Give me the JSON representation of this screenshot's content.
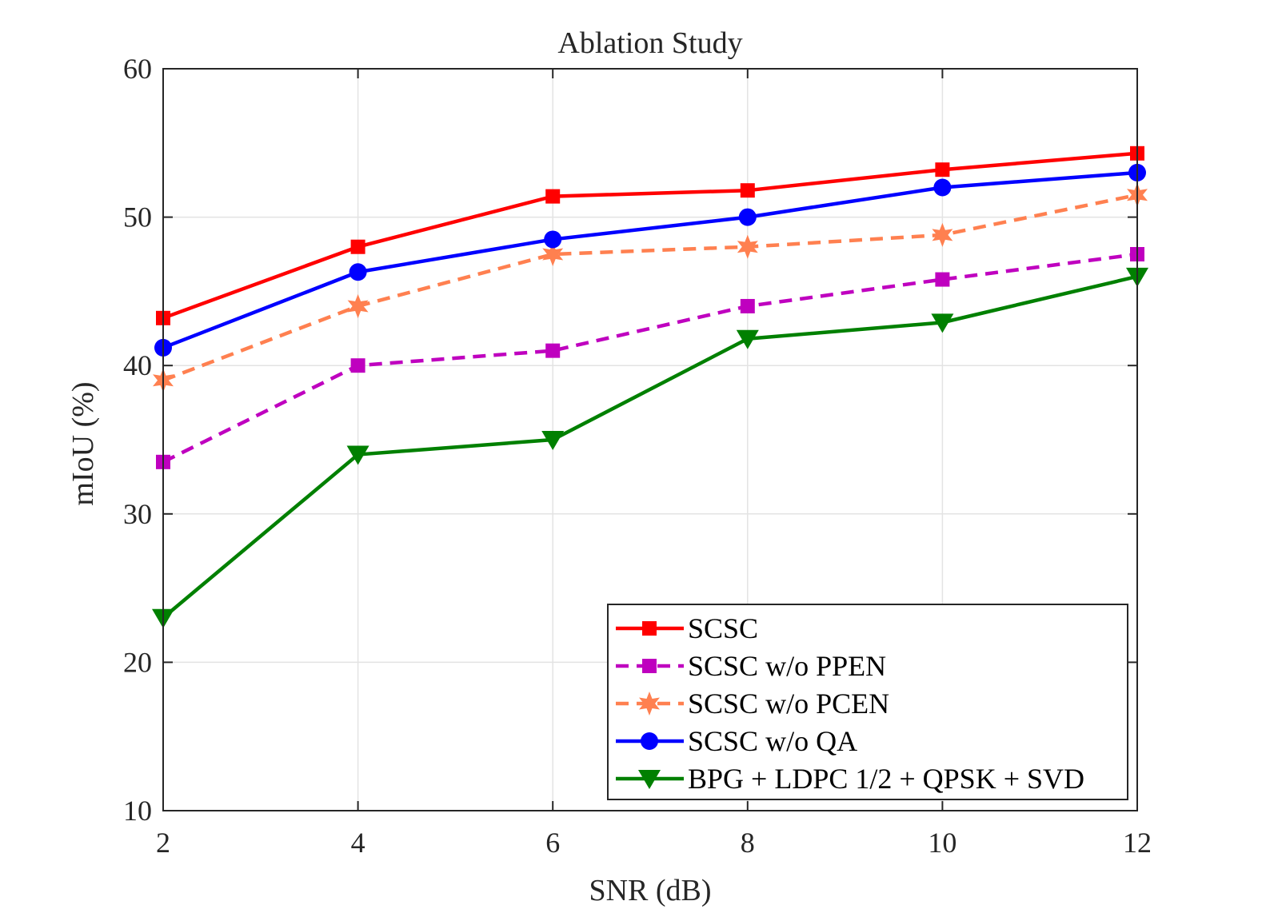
{
  "chart_data": {
    "type": "line",
    "title": "Ablation Study",
    "xlabel": "SNR (dB)",
    "ylabel": "mIoU (%)",
    "x": [
      2,
      4,
      6,
      8,
      10,
      12
    ],
    "xlim": [
      2,
      12
    ],
    "ylim": [
      10,
      60
    ],
    "xticks": [
      2,
      4,
      6,
      8,
      10,
      12
    ],
    "yticks": [
      10,
      20,
      30,
      40,
      50,
      60
    ],
    "grid": true,
    "legend_position": "bottom-right",
    "series": [
      {
        "name": "SCSC",
        "values": [
          43.2,
          48.0,
          51.4,
          51.8,
          53.2,
          54.3
        ],
        "color": "#ff0000",
        "line": "solid",
        "marker": "square"
      },
      {
        "name": "SCSC w/o PPEN",
        "values": [
          33.5,
          40.0,
          41.0,
          44.0,
          45.8,
          47.5
        ],
        "color": "#bf00bf",
        "line": "dashed",
        "marker": "square"
      },
      {
        "name": "SCSC w/o PCEN",
        "values": [
          39.0,
          44.0,
          47.5,
          48.0,
          48.8,
          51.5
        ],
        "color": "#ff8050",
        "line": "dashed",
        "marker": "star"
      },
      {
        "name": "SCSC w/o QA",
        "values": [
          41.2,
          46.3,
          48.5,
          50.0,
          52.0,
          53.0
        ],
        "color": "#0000ff",
        "line": "solid",
        "marker": "circle"
      },
      {
        "name": "BPG + LDPC 1/2 + QPSK + SVD",
        "values": [
          23.0,
          34.0,
          35.0,
          41.8,
          42.9,
          46.0
        ],
        "color": "#008000",
        "line": "solid",
        "marker": "triangle-down"
      }
    ]
  }
}
